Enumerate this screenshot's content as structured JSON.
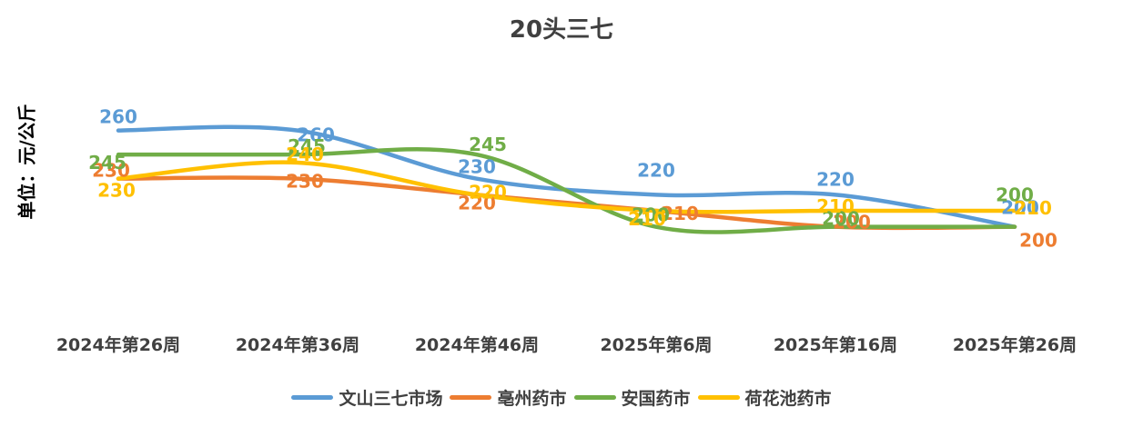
{
  "chart_data": {
    "type": "line",
    "title": "20头三七",
    "ylabel": "单位：元/公斤",
    "xlabel": "",
    "categories": [
      "2024年第26周",
      "2024年第36周",
      "2024年第46周",
      "2025年第6周",
      "2025年第16周",
      "2025年第26周"
    ],
    "ylim": [
      150,
      270
    ],
    "grid": false,
    "legend_position": "bottom",
    "smooth": true,
    "series": [
      {
        "name": "文山三七市场",
        "color": "#5B9BD5",
        "values": [
          260,
          260,
          230,
          220,
          220,
          200
        ]
      },
      {
        "name": "亳州药市",
        "color": "#ED7D31",
        "values": [
          230,
          230,
          220,
          210,
          200,
          200
        ]
      },
      {
        "name": "安国药市",
        "color": "#70AD47",
        "values": [
          245,
          245,
          245,
          200,
          200,
          200
        ]
      },
      {
        "name": "荷花池药市",
        "color": "#FFC000",
        "values": [
          230,
          240,
          220,
          210,
          210,
          210
        ]
      }
    ]
  }
}
